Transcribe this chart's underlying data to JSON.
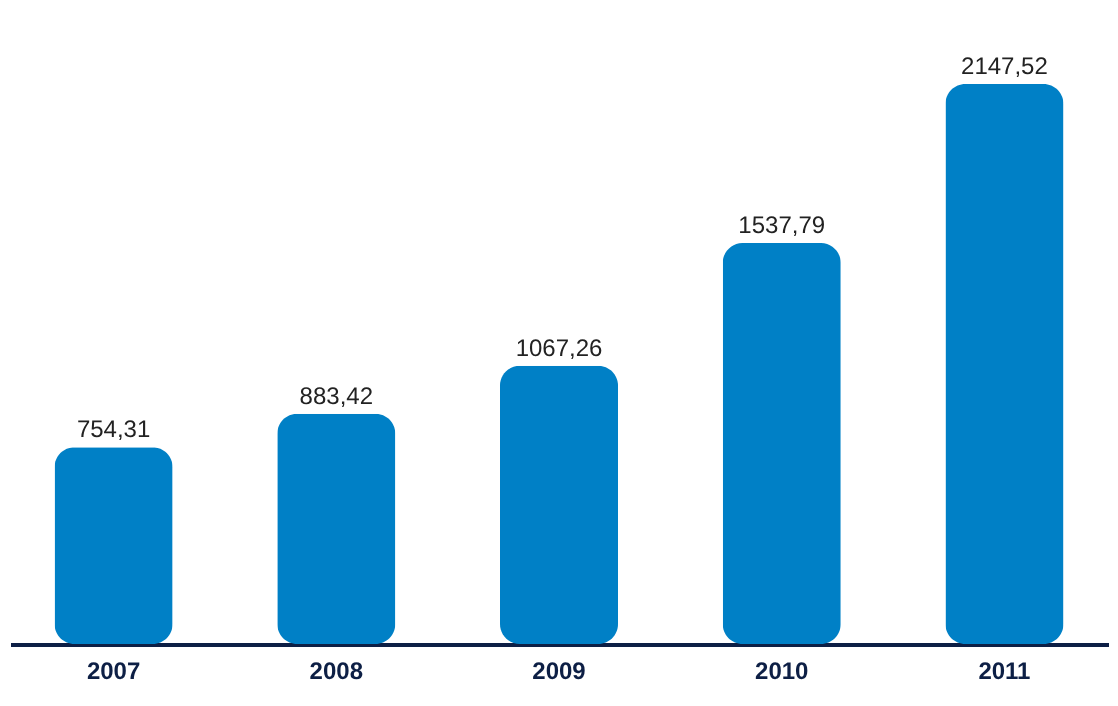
{
  "chart_data": {
    "type": "bar",
    "categories": [
      "2007",
      "2008",
      "2009",
      "2010",
      "2011"
    ],
    "values": [
      754.31,
      883.42,
      1067.26,
      1537.79,
      2147.52
    ],
    "value_labels": [
      "754,31",
      "883,42",
      "1067,26",
      "1537,79",
      "2147,52"
    ],
    "color": "#0080c6"
  }
}
